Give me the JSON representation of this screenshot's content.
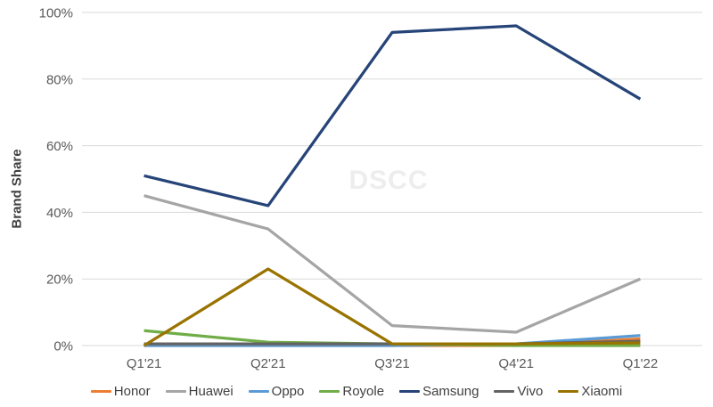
{
  "watermark": "DSCC",
  "chart_data": {
    "type": "line",
    "title": "",
    "xlabel": "",
    "ylabel": "Brand Share",
    "categories": [
      "Q1'21",
      "Q2'21",
      "Q3'21",
      "Q4'21",
      "Q1'22"
    ],
    "ylim": [
      0,
      100
    ],
    "yticks": [
      0,
      20,
      40,
      60,
      80,
      100
    ],
    "ytick_suffix": "%",
    "grid": "horizontal",
    "legend_position": "bottom",
    "series": [
      {
        "name": "Honor",
        "color": "#ED7D31",
        "values": [
          0,
          0,
          0,
          0,
          2
        ]
      },
      {
        "name": "Huawei",
        "color": "#A5A5A5",
        "values": [
          45,
          35,
          6,
          4,
          20
        ]
      },
      {
        "name": "Oppo",
        "color": "#5B9BD5",
        "values": [
          0,
          0,
          0,
          0.5,
          3
        ]
      },
      {
        "name": "Royole",
        "color": "#70AD47",
        "values": [
          4.5,
          1,
          0.5,
          0,
          0
        ]
      },
      {
        "name": "Samsung",
        "color": "#264478",
        "values": [
          51,
          42,
          94,
          96,
          74
        ]
      },
      {
        "name": "Vivo",
        "color": "#636363",
        "values": [
          0.5,
          0.5,
          0.5,
          0.5,
          1.3
        ]
      },
      {
        "name": "Xiaomi",
        "color": "#997300",
        "values": [
          0,
          23,
          0.5,
          0.5,
          0.8
        ]
      }
    ]
  },
  "colors": {
    "gridline": "#D9D9D9",
    "tick_label": "#595959",
    "axis_title": "#404040",
    "legend_text": "#404040",
    "watermark": "#EDEDED"
  }
}
